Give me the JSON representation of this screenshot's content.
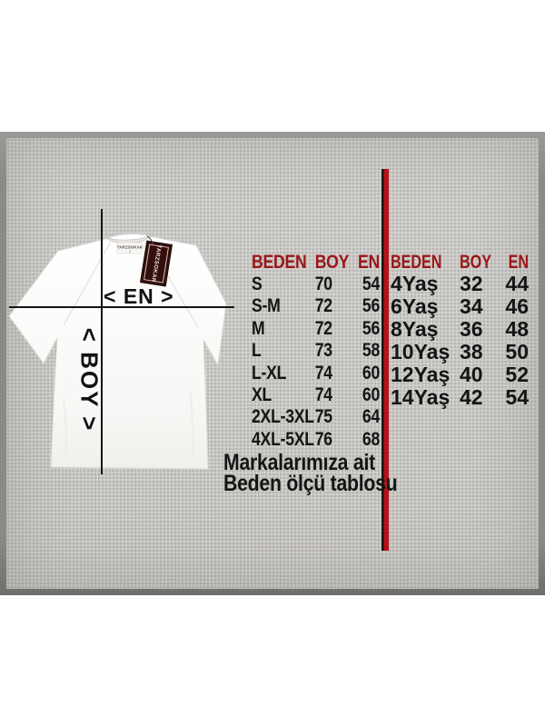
{
  "colors": {
    "header_red": "#9a1518",
    "divider_red": "#b5121a",
    "tag_maroon": "#340f0b",
    "panel_gray": "#c8c7c3"
  },
  "tshirt": {
    "neck_label": "TARZSOKAK",
    "neck_label_size": "S",
    "hang_tag_text": "TARZSOKAK",
    "width_label": "< EN >",
    "length_label": "< BOY >"
  },
  "tables": {
    "adult": {
      "headers": [
        "BEDEN",
        "BOY",
        "EN"
      ],
      "rows": [
        [
          "S",
          "70",
          "54"
        ],
        [
          "S-M",
          "72",
          "56"
        ],
        [
          "M",
          "72",
          "56"
        ],
        [
          "L",
          "73",
          "58"
        ],
        [
          "L-XL",
          "74",
          "60"
        ],
        [
          "XL",
          "74",
          "60"
        ],
        [
          "2XL-3XL",
          "75",
          "64"
        ],
        [
          "4XL-5XL",
          "76",
          "68"
        ]
      ]
    },
    "kids": {
      "headers": [
        "BEDEN",
        "BOY",
        "EN"
      ],
      "rows": [
        [
          "4Yaş",
          "32",
          "44"
        ],
        [
          "6Yaş",
          "34",
          "46"
        ],
        [
          "8Yaş",
          "36",
          "48"
        ],
        [
          "10Yaş",
          "38",
          "50"
        ],
        [
          "12Yaş",
          "40",
          "52"
        ],
        [
          "14Yaş",
          "42",
          "54"
        ]
      ]
    }
  },
  "caption": {
    "line1": "Markalarımıza ait",
    "line2": "Beden ölçü tablosu"
  }
}
